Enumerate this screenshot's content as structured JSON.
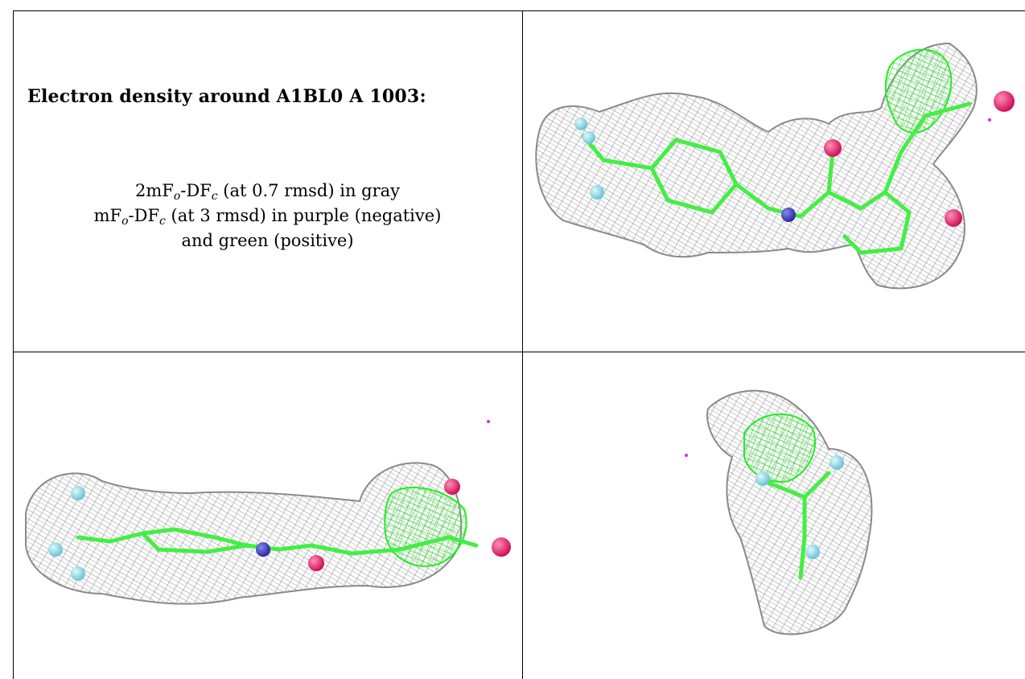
{
  "caption": {
    "title": "Electron density around A1BL0 A 1003:",
    "line1": {
      "pre": "2mF",
      "sub1": "o",
      "mid": "-DF",
      "sub2": "c",
      "post": " (at 0.7 rmsd) in gray"
    },
    "line2": {
      "pre": "mF",
      "sub1": "o",
      "mid": "-DF",
      "sub2": "c",
      "post": " (at 3 rmsd) in purple (negative)"
    },
    "line3": "and green (positive)"
  },
  "colors": {
    "mesh_gray": "#8a8a8a",
    "diff_positive_green": "#33ff33",
    "diff_negative_purple": "#cc33cc",
    "carbon": "#44ee44",
    "oxygen": "#e8206a",
    "nitrogen": "#4444cc",
    "fluorine": "#8fd9e6"
  }
}
